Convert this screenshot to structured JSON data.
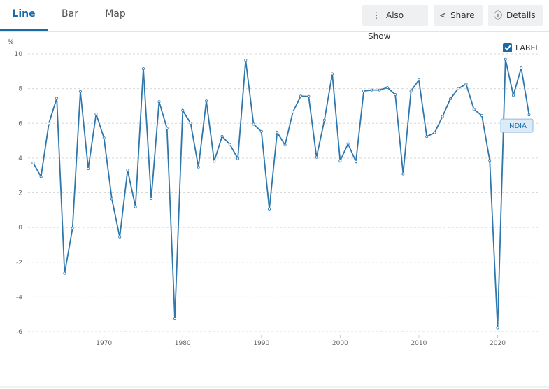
{
  "tabs": [
    "Line",
    "Bar",
    "Map"
  ],
  "buttons": [
    "Also Show",
    "Share",
    "Details"
  ],
  "chart_data": {
    "type": "line",
    "y_unit": "%",
    "toggle_label": "LABEL",
    "x": [
      1961,
      1962,
      1963,
      1964,
      1965,
      1966,
      1967,
      1968,
      1969,
      1970,
      1971,
      1972,
      1973,
      1974,
      1975,
      1976,
      1977,
      1978,
      1979,
      1980,
      1981,
      1982,
      1983,
      1984,
      1985,
      1986,
      1987,
      1988,
      1989,
      1990,
      1991,
      1992,
      1993,
      1994,
      1995,
      1996,
      1997,
      1998,
      1999,
      2000,
      2001,
      2002,
      2003,
      2004,
      2005,
      2006,
      2007,
      2008,
      2009,
      2010,
      2011,
      2012,
      2013,
      2014,
      2015,
      2016,
      2017,
      2018,
      2019,
      2020,
      2021,
      2022,
      2023,
      2024
    ],
    "series": [
      {
        "name": "INDIA",
        "color": "#2e77ad",
        "values": [
          3.72,
          2.93,
          5.99,
          7.45,
          -2.64,
          -0.06,
          7.83,
          3.39,
          6.54,
          5.16,
          1.64,
          -0.55,
          3.3,
          1.19,
          9.15,
          1.66,
          7.25,
          5.71,
          -5.24,
          6.74,
          6.01,
          3.48,
          7.29,
          3.82,
          5.25,
          4.78,
          3.97,
          9.63,
          5.95,
          5.53,
          1.06,
          5.48,
          4.75,
          6.66,
          7.57,
          7.55,
          4.05,
          6.18,
          8.85,
          3.84,
          4.82,
          3.8,
          7.86,
          7.92,
          7.92,
          8.06,
          7.66,
          3.09,
          7.86,
          8.5,
          5.24,
          5.46,
          6.39,
          7.41,
          8.0,
          8.26,
          6.8,
          6.45,
          3.87,
          -5.78,
          9.69,
          7.61,
          9.19,
          6.49
        ]
      }
    ],
    "xlim": [
      1959.9,
      2025.2
    ],
    "xticks": [
      1970,
      1980,
      1990,
      2000,
      2010,
      2020
    ],
    "ylim": [
      -6,
      10
    ],
    "yticks": [
      -6,
      -4,
      -2,
      0,
      2,
      4,
      6,
      8,
      10
    ],
    "grid": true
  }
}
